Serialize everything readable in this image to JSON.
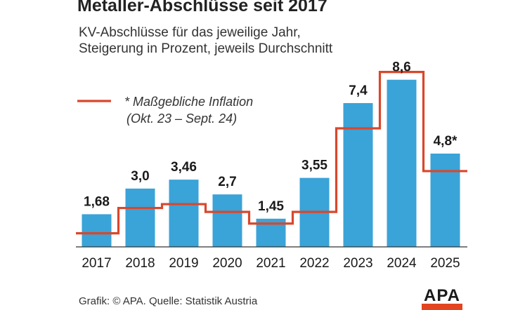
{
  "header": {
    "title": "Metaller-Abschlüsse seit 2017",
    "subtitle_line1": "KV-Abschlüsse für das jeweilige Jahr,",
    "subtitle_line2": "Steigerung in Prozent, jeweils Durchschnitt"
  },
  "chart_data": {
    "type": "bar",
    "categories": [
      "2017",
      "2018",
      "2019",
      "2020",
      "2021",
      "2022",
      "2023",
      "2024",
      "2025"
    ],
    "series": [
      {
        "values": [
          1.68,
          3.0,
          3.46,
          2.7,
          1.45,
          3.55,
          7.4,
          8.6,
          4.8
        ],
        "labels": [
          "1,68",
          "3,0",
          "3,46",
          "2,7",
          "1,45",
          "3,55",
          "7,4",
          "8,6",
          "4,8*"
        ],
        "color": "#3aa3d8"
      },
      {
        "name": "* Maßgebliche Inflation",
        "type": "step-line",
        "values": [
          0.7,
          2.0,
          2.2,
          1.8,
          1.2,
          1.8,
          6.1,
          9.0,
          3.9
        ],
        "color": "#d9472b"
      }
    ],
    "legend": {
      "line1": "* Maßgebliche Inflation",
      "line2": "(Okt. 23 – Sept. 24)",
      "placement": "top-left"
    },
    "ylim": [
      0,
      9.6
    ],
    "grid": false,
    "xlabel": "",
    "ylabel": ""
  },
  "footer": {
    "source": "Grafik: © APA. Quelle: Statistik Austria",
    "logo": "APA",
    "logo_color": "#e2451f"
  }
}
